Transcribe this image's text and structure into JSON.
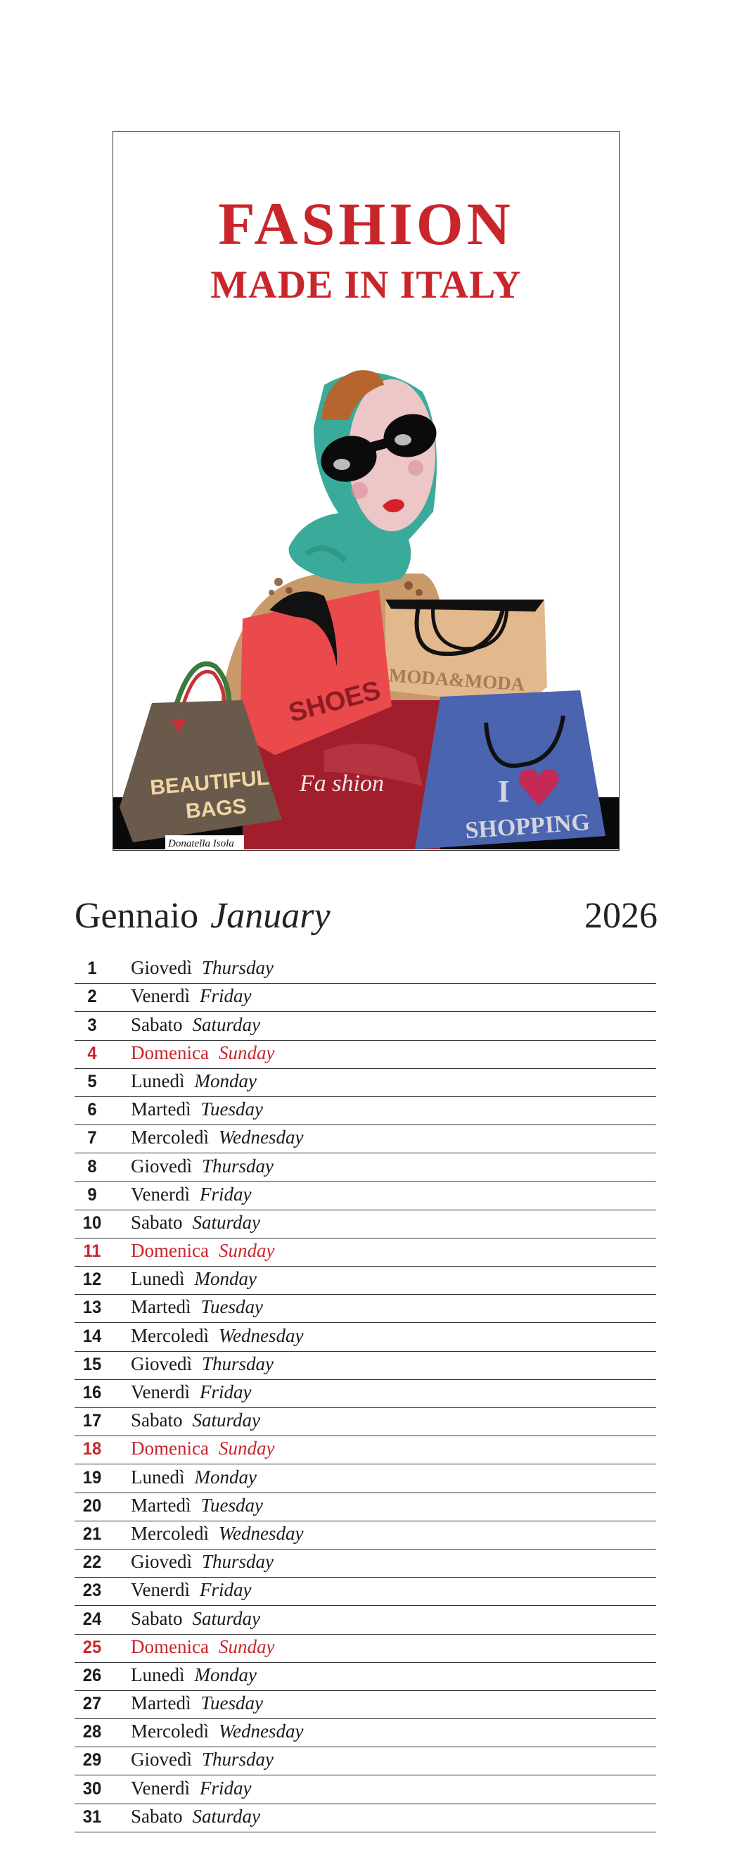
{
  "poster": {
    "title": "FASHION",
    "subtitle": "MADE IN ITALY",
    "bag_labels": {
      "shoes": "SHOES",
      "moda": "MODA&MODA",
      "fashion": "Fa shion",
      "beautiful": "BEAUTIFUL",
      "bags": "BAGS",
      "i": "I",
      "shopping": "SHOPPING"
    },
    "signature": "Donatella Isola"
  },
  "calendar": {
    "month_it": "Gennaio",
    "month_en": "January",
    "year": "2026",
    "sunday_color": "#c8262b",
    "days": [
      {
        "n": "1",
        "it": "Giovedì",
        "en": "Thursday",
        "sunday": false
      },
      {
        "n": "2",
        "it": "Venerdì",
        "en": "Friday",
        "sunday": false
      },
      {
        "n": "3",
        "it": "Sabato",
        "en": "Saturday",
        "sunday": false
      },
      {
        "n": "4",
        "it": "Domenica",
        "en": "Sunday",
        "sunday": true
      },
      {
        "n": "5",
        "it": "Lunedì",
        "en": "Monday",
        "sunday": false
      },
      {
        "n": "6",
        "it": "Martedì",
        "en": "Tuesday",
        "sunday": false
      },
      {
        "n": "7",
        "it": "Mercoledì",
        "en": "Wednesday",
        "sunday": false
      },
      {
        "n": "8",
        "it": "Giovedì",
        "en": "Thursday",
        "sunday": false
      },
      {
        "n": "9",
        "it": "Venerdì",
        "en": "Friday",
        "sunday": false
      },
      {
        "n": "10",
        "it": "Sabato",
        "en": "Saturday",
        "sunday": false
      },
      {
        "n": "11",
        "it": "Domenica",
        "en": "Sunday",
        "sunday": true
      },
      {
        "n": "12",
        "it": "Lunedì",
        "en": "Monday",
        "sunday": false
      },
      {
        "n": "13",
        "it": "Martedì",
        "en": "Tuesday",
        "sunday": false
      },
      {
        "n": "14",
        "it": "Mercoledì",
        "en": "Wednesday",
        "sunday": false
      },
      {
        "n": "15",
        "it": "Giovedì",
        "en": "Thursday",
        "sunday": false
      },
      {
        "n": "16",
        "it": "Venerdì",
        "en": "Friday",
        "sunday": false
      },
      {
        "n": "17",
        "it": "Sabato",
        "en": "Saturday",
        "sunday": false
      },
      {
        "n": "18",
        "it": "Domenica",
        "en": "Sunday",
        "sunday": true
      },
      {
        "n": "19",
        "it": "Lunedì",
        "en": "Monday",
        "sunday": false
      },
      {
        "n": "20",
        "it": "Martedì",
        "en": "Tuesday",
        "sunday": false
      },
      {
        "n": "21",
        "it": "Mercoledì",
        "en": "Wednesday",
        "sunday": false
      },
      {
        "n": "22",
        "it": "Giovedì",
        "en": "Thursday",
        "sunday": false
      },
      {
        "n": "23",
        "it": "Venerdì",
        "en": "Friday",
        "sunday": false
      },
      {
        "n": "24",
        "it": "Sabato",
        "en": "Saturday",
        "sunday": false
      },
      {
        "n": "25",
        "it": "Domenica",
        "en": "Sunday",
        "sunday": true
      },
      {
        "n": "26",
        "it": "Lunedì",
        "en": "Monday",
        "sunday": false
      },
      {
        "n": "27",
        "it": "Martedì",
        "en": "Tuesday",
        "sunday": false
      },
      {
        "n": "28",
        "it": "Mercoledì",
        "en": "Wednesday",
        "sunday": false
      },
      {
        "n": "29",
        "it": "Giovedì",
        "en": "Thursday",
        "sunday": false
      },
      {
        "n": "30",
        "it": "Venerdì",
        "en": "Friday",
        "sunday": false
      },
      {
        "n": "31",
        "it": "Sabato",
        "en": "Saturday",
        "sunday": false
      }
    ]
  }
}
